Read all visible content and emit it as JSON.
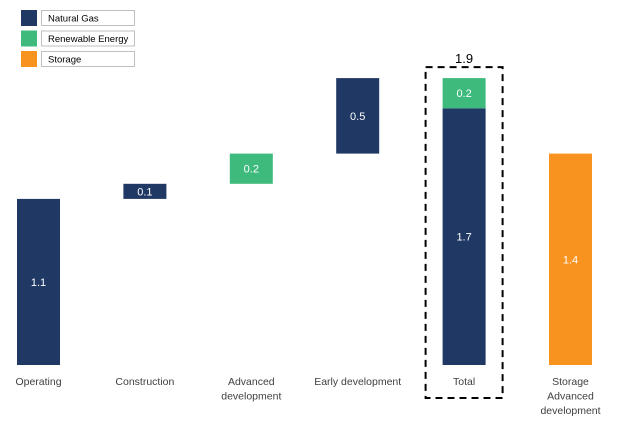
{
  "chart_data": {
    "type": "bar",
    "subtype": "waterfall",
    "categories": [
      "Operating",
      "Construction",
      "Advanced development",
      "Early development",
      "Total",
      "Storage Advanced development"
    ],
    "category_lines": [
      [
        "Operating"
      ],
      [
        "Construction"
      ],
      [
        "Advanced",
        "development"
      ],
      [
        "Early development"
      ],
      [
        "Total"
      ],
      [
        "Storage",
        "Advanced",
        "development"
      ]
    ],
    "bars": [
      {
        "category": "Operating",
        "segments": [
          {
            "series": "Natural Gas",
            "start": 0,
            "value": 1.1,
            "label": "1.1"
          }
        ]
      },
      {
        "category": "Construction",
        "segments": [
          {
            "series": "Natural Gas",
            "start": 1.1,
            "value": 0.1,
            "label": "0.1"
          }
        ]
      },
      {
        "category": "Advanced development",
        "segments": [
          {
            "series": "Renewable Energy",
            "start": 1.2,
            "value": 0.2,
            "label": "0.2"
          }
        ]
      },
      {
        "category": "Early development",
        "segments": [
          {
            "series": "Natural Gas",
            "start": 1.4,
            "value": 0.5,
            "label": "0.5"
          }
        ]
      },
      {
        "category": "Total",
        "segments": [
          {
            "series": "Natural Gas",
            "start": 0,
            "value": 1.7,
            "label": "1.7"
          },
          {
            "series": "Renewable Energy",
            "start": 1.7,
            "value": 0.2,
            "label": "0.2"
          }
        ],
        "total_label": "1.9",
        "highlight": "dashed-box"
      },
      {
        "category": "Storage Advanced development",
        "segments": [
          {
            "series": "Storage",
            "start": 0,
            "value": 1.4,
            "label": "1.4"
          }
        ]
      }
    ],
    "legend": {
      "placement": "top-left",
      "entries": [
        {
          "name": "Natural Gas",
          "color": "#203864"
        },
        {
          "name": "Renewable Energy",
          "color": "#3dba7c"
        },
        {
          "name": "Storage",
          "color": "#f7931e"
        }
      ]
    },
    "ylim": [
      0,
      1.9
    ],
    "grid": false,
    "title": "",
    "xlabel": "",
    "ylabel": ""
  }
}
